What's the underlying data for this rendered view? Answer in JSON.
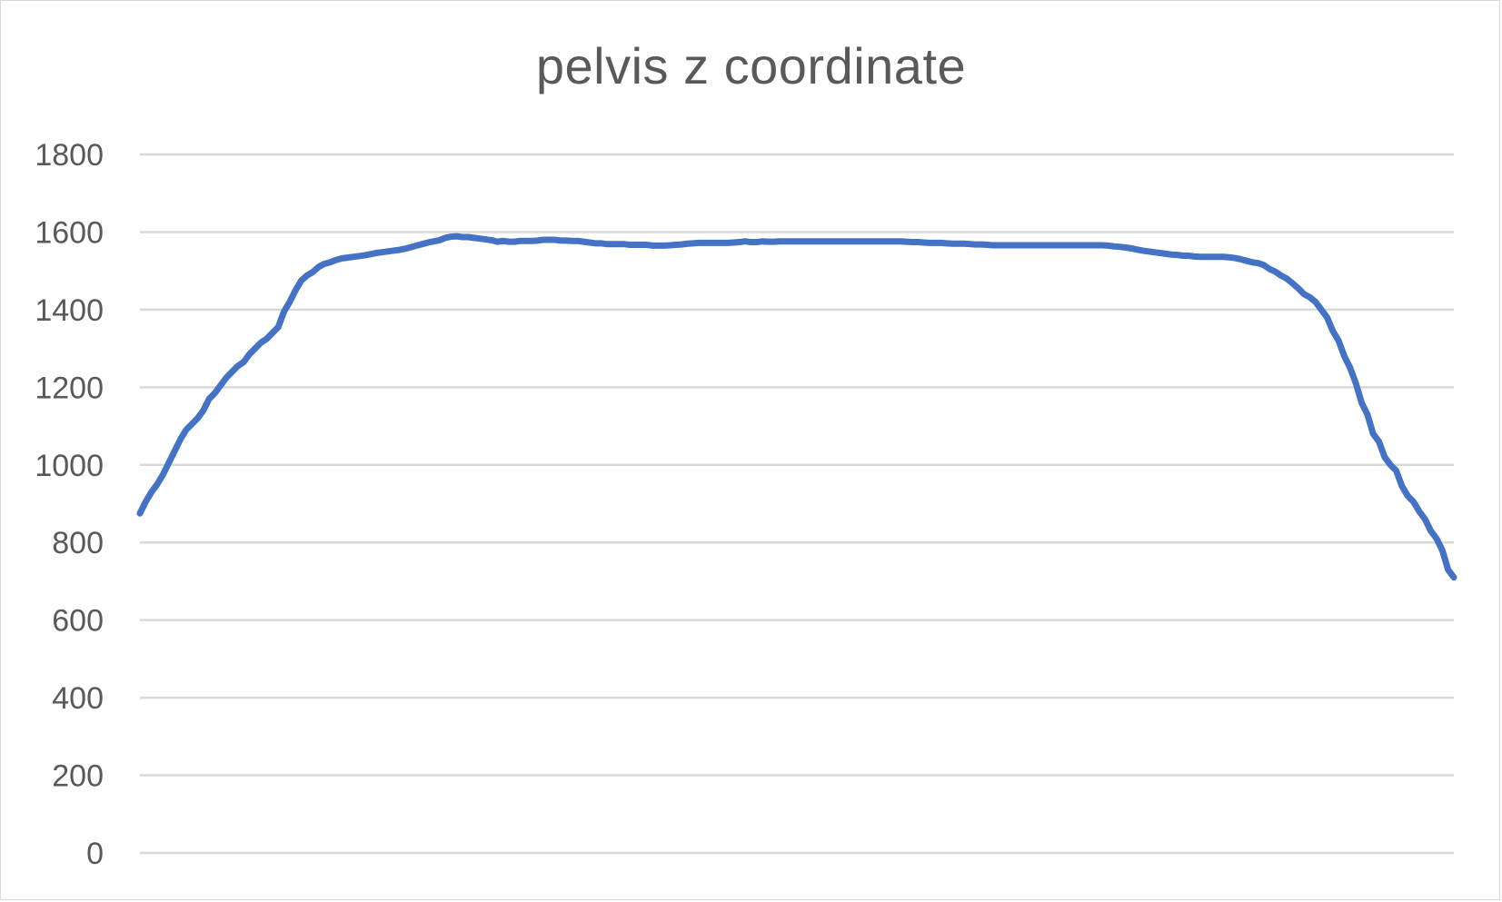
{
  "chart_data": {
    "type": "line",
    "title": "pelvis z coordinate",
    "xlabel": "",
    "ylabel": "",
    "ylim": [
      0,
      1800
    ],
    "yticks": [
      0,
      200,
      400,
      600,
      800,
      1000,
      1200,
      1400,
      1600,
      1800
    ],
    "grid": true,
    "legend": "none",
    "line_color": "#4472c4",
    "series": [
      {
        "values": [
          875,
          905,
          930,
          950,
          975,
          1005,
          1035,
          1065,
          1090,
          1105,
          1120,
          1140,
          1170,
          1185,
          1205,
          1225,
          1240,
          1255,
          1265,
          1285,
          1300,
          1315,
          1325,
          1340,
          1355,
          1395,
          1420,
          1450,
          1475,
          1488,
          1497,
          1510,
          1518,
          1522,
          1528,
          1532,
          1534,
          1536,
          1538,
          1540,
          1543,
          1546,
          1548,
          1550,
          1552,
          1554,
          1557,
          1561,
          1565,
          1569,
          1573,
          1576,
          1579,
          1585,
          1588,
          1589,
          1587,
          1587,
          1585,
          1583,
          1581,
          1579,
          1575,
          1577,
          1575,
          1575,
          1577,
          1577,
          1577,
          1578,
          1580,
          1580,
          1580,
          1578,
          1578,
          1577,
          1577,
          1575,
          1573,
          1571,
          1571,
          1569,
          1569,
          1569,
          1569,
          1567,
          1567,
          1567,
          1567,
          1565,
          1565,
          1565,
          1566,
          1567,
          1568,
          1570,
          1571,
          1572,
          1572,
          1572,
          1572,
          1572,
          1572,
          1573,
          1574,
          1576,
          1574,
          1574,
          1576,
          1575,
          1575,
          1576,
          1576,
          1576,
          1576,
          1576,
          1576,
          1576,
          1576,
          1576,
          1576,
          1576,
          1576,
          1576,
          1576,
          1576,
          1576,
          1576,
          1576,
          1576,
          1576,
          1576,
          1576,
          1575,
          1574,
          1574,
          1573,
          1572,
          1572,
          1572,
          1571,
          1570,
          1570,
          1570,
          1569,
          1568,
          1568,
          1567,
          1566,
          1566,
          1566,
          1566,
          1566,
          1566,
          1566,
          1566,
          1566,
          1566,
          1566,
          1566,
          1566,
          1566,
          1566,
          1566,
          1566,
          1566,
          1566,
          1566,
          1565,
          1563,
          1562,
          1560,
          1558,
          1555,
          1552,
          1550,
          1548,
          1546,
          1544,
          1542,
          1541,
          1539,
          1539,
          1537,
          1536,
          1536,
          1536,
          1536,
          1536,
          1535,
          1533,
          1530,
          1526,
          1522,
          1520,
          1515,
          1505,
          1498,
          1488,
          1480,
          1468,
          1455,
          1440,
          1432,
          1420,
          1400,
          1380,
          1345,
          1320,
          1280,
          1250,
          1210,
          1160,
          1130,
          1080,
          1060,
          1020,
          1000,
          985,
          945,
          920,
          905,
          880,
          860,
          830,
          810,
          780,
          730,
          710
        ]
      }
    ]
  }
}
